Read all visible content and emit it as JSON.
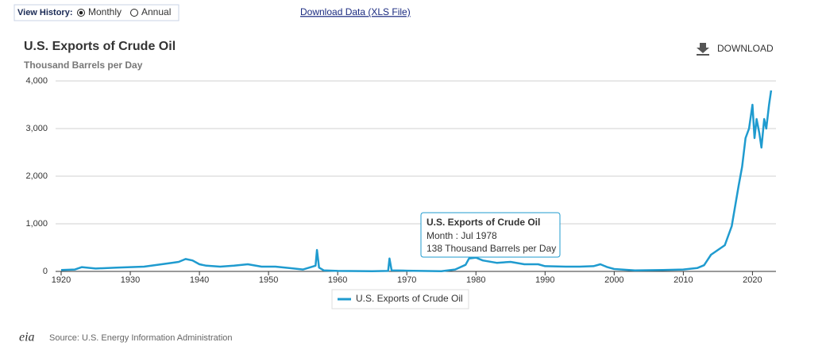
{
  "ui": {
    "view_history_label": "View History:",
    "monthly": "Monthly",
    "annual": "Annual",
    "download_data": "Download Data (XLS File)",
    "download_button": "DOWNLOAD",
    "source": "Source: U.S. Energy Information Administration",
    "logo": "eia"
  },
  "tooltip": {
    "lines": [
      "Month : Jul 1978",
      "138 Thousand Barrels per Day"
    ]
  },
  "chart_data": {
    "type": "line",
    "title": "U.S. Exports of Crude Oil",
    "subtitle": "Thousand Barrels per Day",
    "x": [
      1920,
      1922,
      1923,
      1925,
      1928,
      1930,
      1932,
      1934,
      1936,
      1937,
      1938,
      1939,
      1940,
      1941,
      1943,
      1945,
      1947,
      1949,
      1951,
      1953,
      1955,
      1956.8,
      1957,
      1957.3,
      1958,
      1960,
      1965,
      1967.3,
      1967.5,
      1967.8,
      1970,
      1975,
      1977,
      1978.5,
      1979,
      1980,
      1981,
      1983,
      1985,
      1987,
      1989,
      1990,
      1993,
      1995,
      1997,
      1998,
      1999,
      2000,
      2003,
      2007,
      2010,
      2012,
      2013,
      2014,
      2015,
      2016,
      2017,
      2018,
      2018.5,
      2019,
      2019.5,
      2020,
      2020.3,
      2020.6,
      2021,
      2021.3,
      2021.7,
      2022,
      2022.4,
      2022.7
    ],
    "series": [
      {
        "name": "U.S. Exports of Crude Oil",
        "color": "#1f9bcf",
        "values": [
          30,
          40,
          90,
          60,
          80,
          90,
          100,
          140,
          180,
          200,
          260,
          230,
          150,
          120,
          100,
          120,
          150,
          100,
          100,
          70,
          40,
          120,
          450,
          80,
          20,
          10,
          5,
          10,
          270,
          20,
          15,
          5,
          40,
          138,
          270,
          290,
          230,
          180,
          200,
          150,
          150,
          110,
          100,
          100,
          110,
          150,
          90,
          50,
          20,
          30,
          40,
          70,
          130,
          350,
          450,
          550,
          950,
          1800,
          2200,
          2800,
          3000,
          3500,
          2800,
          3200,
          2900,
          2600,
          3200,
          3000,
          3500,
          3800
        ]
      }
    ],
    "xlim": [
      1920,
      2023.4
    ],
    "xticks": [
      1920,
      1930,
      1940,
      1950,
      1960,
      1970,
      1980,
      1990,
      2000,
      2010,
      2020
    ],
    "ylim": [
      0,
      4000
    ],
    "yticks": [
      0,
      {
        "value": 1000,
        "label": "1,000"
      },
      {
        "value": 2000,
        "label": "2,000"
      },
      {
        "value": 3000,
        "label": "3,000"
      },
      {
        "value": 4000,
        "label": "4,000"
      }
    ],
    "grid": true,
    "legend": "bottom"
  }
}
